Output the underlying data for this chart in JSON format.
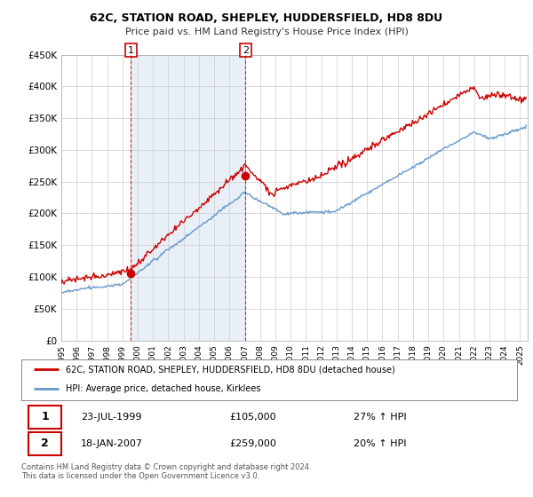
{
  "title": "62C, STATION ROAD, SHEPLEY, HUDDERSFIELD, HD8 8DU",
  "subtitle": "Price paid vs. HM Land Registry's House Price Index (HPI)",
  "legend_line1": "62C, STATION ROAD, SHEPLEY, HUDDERSFIELD, HD8 8DU (detached house)",
  "legend_line2": "HPI: Average price, detached house, Kirklees",
  "annotation1_date": "23-JUL-1999",
  "annotation1_price": "£105,000",
  "annotation1_hpi": "27% ↑ HPI",
  "annotation2_date": "18-JAN-2007",
  "annotation2_price": "£259,000",
  "annotation2_hpi": "20% ↑ HPI",
  "footer": "Contains HM Land Registry data © Crown copyright and database right 2024.\nThis data is licensed under the Open Government Licence v3.0.",
  "line_color_red": "#cc0000",
  "line_color_blue": "#6699cc",
  "background_color": "#ffffff",
  "grid_color": "#cccccc",
  "fill_color_blue": "#ddeeff",
  "ylim": [
    0,
    450000
  ],
  "yticks": [
    0,
    50000,
    100000,
    150000,
    200000,
    250000,
    300000,
    350000,
    400000,
    450000
  ],
  "ytick_labels": [
    "£0",
    "£50K",
    "£100K",
    "£150K",
    "£200K",
    "£250K",
    "£300K",
    "£350K",
    "£400K",
    "£450K"
  ],
  "sale1_x": 1999.56,
  "sale1_y": 105000,
  "sale2_x": 2007.05,
  "sale2_y": 259000,
  "vline1_x": 1999.56,
  "vline2_x": 2007.05,
  "xlim_left": 1995.0,
  "xlim_right": 2025.5
}
